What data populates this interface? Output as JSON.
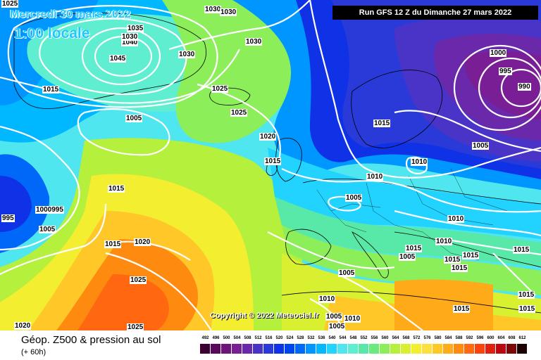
{
  "header": {
    "date": "Mercredi 30 mars 2022",
    "local_time": "1:00 locale",
    "run_info": "Run GFS 12 Z du Dimanche 27 mars 2022"
  },
  "map": {
    "copyright": "Copyright © 2022 Meteociel.fr",
    "isobar_labels": [
      "1025",
      "1030",
      "1030",
      "1035",
      "1040",
      "1045",
      "1030",
      "1030",
      "1030",
      "1015",
      "1025",
      "1025",
      "1005",
      "1020",
      "1015",
      "1015",
      "1010",
      "1010",
      "1005",
      "1005",
      "1000",
      "995",
      "990",
      "1015",
      "1005",
      "1010",
      "1000995",
      "995",
      "1005",
      "1015",
      "1020",
      "1025",
      "1020",
      "1025",
      "1010",
      "1005",
      "1010",
      "1005",
      "1005",
      "1015",
      "1015",
      "1015",
      "1015",
      "1015",
      "1015",
      "1015",
      "1015",
      "1010"
    ]
  },
  "footer": {
    "title": "Géop. Z500 & pression au sol",
    "step": "(+ 60h)"
  },
  "legend": {
    "ticks": [
      "492",
      "496",
      "500",
      "504",
      "508",
      "512",
      "516",
      "520",
      "524",
      "528",
      "532",
      "536",
      "540",
      "544",
      "548",
      "552",
      "556",
      "560",
      "564",
      "568",
      "572",
      "576",
      "580",
      "584",
      "588",
      "592",
      "596",
      "600",
      "604",
      "608",
      "612"
    ],
    "colors": [
      "#3b0030",
      "#5a0a5a",
      "#6e1478",
      "#7a1e96",
      "#6a28aa",
      "#4a34c8",
      "#2a3ad8",
      "#1032e6",
      "#0046f0",
      "#0068f8",
      "#0096ff",
      "#00b8ff",
      "#22d2ff",
      "#50e6f0",
      "#60eed0",
      "#58e8a8",
      "#6ce880",
      "#8cee58",
      "#b4f03c",
      "#d8f030",
      "#f4ee30",
      "#fce040",
      "#ffc828",
      "#ffaa18",
      "#ff8a10",
      "#ff6810",
      "#f84410",
      "#e02010",
      "#b80810",
      "#7c0808",
      "#1a0000"
    ]
  },
  "colors": {
    "isobar": "#ffffff",
    "accent": "#1ec8ff",
    "coast": "#000000"
  }
}
